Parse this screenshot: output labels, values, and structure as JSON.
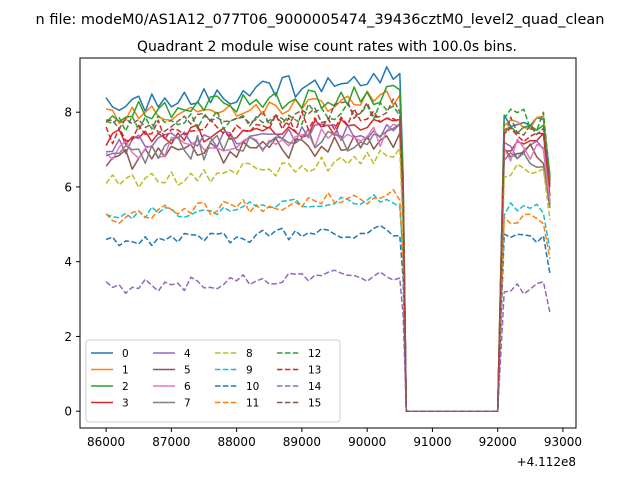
{
  "figure": {
    "suptitle": "n file: modeM0/AS1A12_077T06_9000005474_39436cztM0_level2_quad_clean",
    "title": "Quadrant 2 module wise count rates with 100.0s bins.",
    "offset_label": "+4.112e8"
  },
  "chart_data": {
    "type": "line",
    "title": "Quadrant 2 module wise count rates with 100.0s bins.",
    "xlabel": "",
    "ylabel": "",
    "x_offset": 411200000,
    "xlim": [
      85600,
      93200
    ],
    "ylim": [
      -0.45,
      9.45
    ],
    "xticks": [
      86000,
      87000,
      88000,
      89000,
      90000,
      91000,
      92000,
      93000
    ],
    "yticks": [
      0,
      2,
      4,
      6,
      8
    ],
    "xtick_labels": [
      "86000",
      "87000",
      "88000",
      "89000",
      "90000",
      "91000",
      "92000",
      "93000"
    ],
    "ytick_labels": [
      "0",
      "2",
      "4",
      "6",
      "8"
    ],
    "grid": false,
    "legend_placement": "lower-left",
    "legend_columns": 4,
    "gap": {
      "x_start": 90600,
      "x_end": 92000,
      "value": 0
    },
    "segment1_start": 86000,
    "segment2_end": 92800,
    "bin": 100,
    "series": [
      {
        "name": "0",
        "color": "#1f77b4",
        "dash": "solid",
        "level": 8.15,
        "seg2_level": 7.9,
        "amp": 0.3,
        "trend": 0.85
      },
      {
        "name": "1",
        "color": "#ff7f0e",
        "dash": "solid",
        "level": 7.85,
        "seg2_level": 7.7,
        "amp": 0.25,
        "trend": 0.55
      },
      {
        "name": "2",
        "color": "#2ca02c",
        "dash": "solid",
        "level": 8.0,
        "seg2_level": 7.7,
        "amp": 0.3,
        "trend": 0.5
      },
      {
        "name": "3",
        "color": "#d62728",
        "dash": "solid",
        "level": 7.3,
        "seg2_level": 7.2,
        "amp": 0.25,
        "trend": 0.4
      },
      {
        "name": "4",
        "color": "#9467bd",
        "dash": "solid",
        "level": 7.1,
        "seg2_level": 7.0,
        "amp": 0.25,
        "trend": 0.45
      },
      {
        "name": "5",
        "color": "#8c564b",
        "dash": "solid",
        "level": 6.7,
        "seg2_level": 6.9,
        "amp": 0.3,
        "trend": 0.55
      },
      {
        "name": "6",
        "color": "#e377c2",
        "dash": "solid",
        "level": 7.0,
        "seg2_level": 7.0,
        "amp": 0.3,
        "trend": 0.4
      },
      {
        "name": "7",
        "color": "#7f7f7f",
        "dash": "solid",
        "level": 6.9,
        "seg2_level": 6.8,
        "amp": 0.35,
        "trend": 0.5
      },
      {
        "name": "8",
        "color": "#bcbd22",
        "dash": "dashed",
        "level": 6.1,
        "seg2_level": 6.4,
        "amp": 0.25,
        "trend": 0.7
      },
      {
        "name": "9",
        "color": "#17becf",
        "dash": "dashed",
        "level": 5.25,
        "seg2_level": 5.4,
        "amp": 0.18,
        "trend": 0.4
      },
      {
        "name": "10",
        "color": "#1f77b4",
        "dash": "dashed",
        "level": 4.55,
        "seg2_level": 4.6,
        "amp": 0.18,
        "trend": 0.3
      },
      {
        "name": "11",
        "color": "#ff7f0e",
        "dash": "dashed",
        "level": 5.2,
        "seg2_level": 5.1,
        "amp": 0.2,
        "trend": 0.6
      },
      {
        "name": "12",
        "color": "#2ca02c",
        "dash": "dashed",
        "level": 7.6,
        "seg2_level": 7.8,
        "amp": 0.3,
        "trend": 0.5
      },
      {
        "name": "13",
        "color": "#d62728",
        "dash": "dashed",
        "level": 7.4,
        "seg2_level": 7.5,
        "amp": 0.3,
        "trend": 0.5
      },
      {
        "name": "14",
        "color": "#9467bd",
        "dash": "dashed",
        "level": 3.3,
        "seg2_level": 3.3,
        "amp": 0.2,
        "trend": 0.35
      },
      {
        "name": "15",
        "color": "#8c564b",
        "dash": "dashed",
        "level": 7.5,
        "seg2_level": 7.6,
        "amp": 0.3,
        "trend": 0.6
      }
    ]
  }
}
